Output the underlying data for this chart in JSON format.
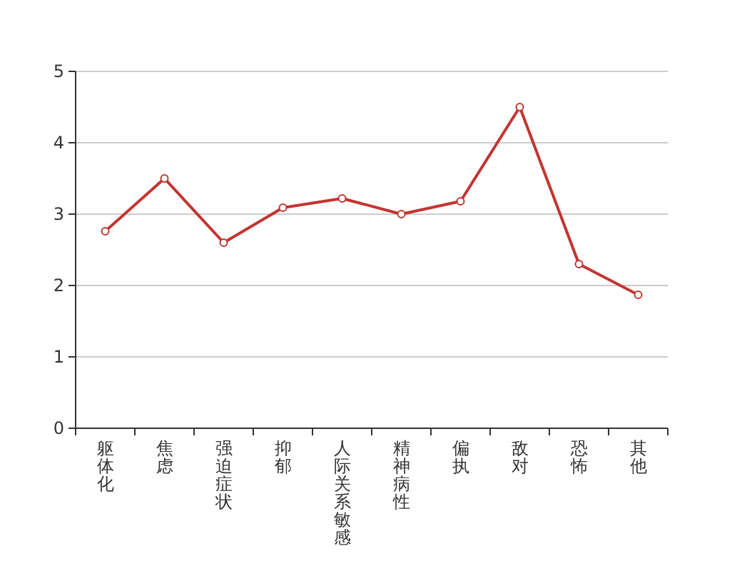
{
  "chart_data": {
    "type": "line",
    "categories": [
      "躯体化",
      "焦虑",
      "强迫症状",
      "抑郁",
      "人际关系敏感",
      "精神病性",
      "偏执",
      "敌对",
      "恐怖",
      "其他"
    ],
    "series": [
      {
        "color": "#c23531",
        "values": [
          2.76,
          3.5,
          2.6,
          3.09,
          3.22,
          3.0,
          3.18,
          4.5,
          2.3,
          1.87
        ]
      }
    ],
    "ylim": [
      0,
      5
    ],
    "yticks": [
      0,
      1,
      2,
      3,
      4,
      5
    ],
    "grid": "y",
    "marker": "circle",
    "line_style": "solid"
  }
}
